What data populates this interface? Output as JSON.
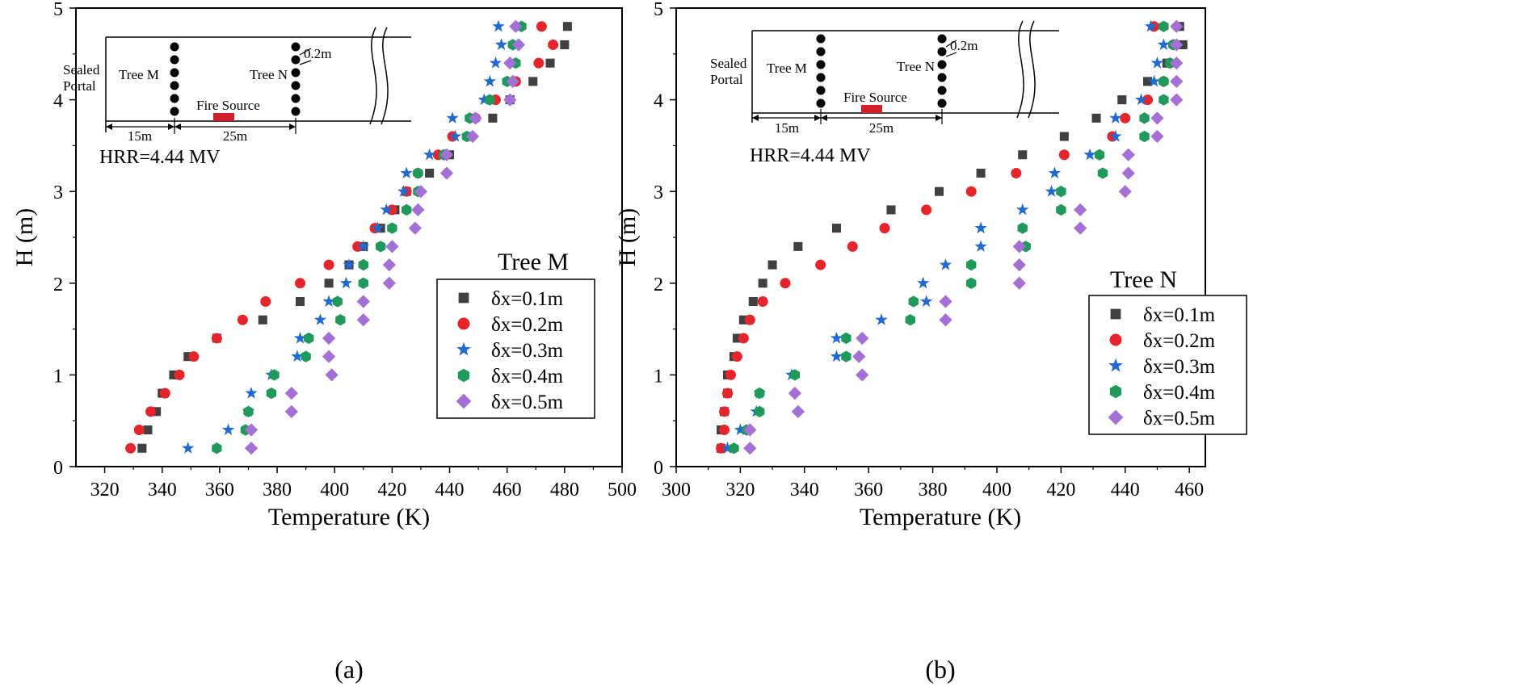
{
  "legend_entries": [
    "δx=0.1m",
    "δx=0.2m",
    "δx=0.3m",
    "δx=0.4m",
    "δx=0.5m"
  ],
  "inset": {
    "sealed_portal": [
      "Sealed",
      "Portal"
    ],
    "tree_m": "Tree  M",
    "tree_n": "Tree  N",
    "fire_source": "Fire Source",
    "spacing": "0.2m",
    "dim_left": "15m",
    "dim_right": "25m"
  },
  "colors": {
    "d01": "#404040",
    "d02": "#e8232a",
    "d03": "#1f6bd6",
    "d04": "#1e9a5a",
    "d05": "#a56fd8",
    "fire": "#d0202a"
  },
  "chart_data": [
    {
      "type": "scatter",
      "panel_label": "(a)",
      "title": "Tree M",
      "annotation": "HRR=4.44 MV",
      "xlabel": "Temperature (K)",
      "ylabel": "H (m)",
      "xlim": [
        310,
        500
      ],
      "ylim": [
        0,
        5
      ],
      "xticks": [
        320,
        340,
        360,
        380,
        400,
        420,
        440,
        460,
        480,
        500
      ],
      "yticks": [
        0,
        1,
        2,
        3,
        4,
        5
      ],
      "legend_position": "bottom-right",
      "y": [
        0.2,
        0.4,
        0.6,
        0.8,
        1.0,
        1.2,
        1.4,
        1.6,
        1.8,
        2.0,
        2.2,
        2.4,
        2.6,
        2.8,
        3.0,
        3.2,
        3.4,
        3.6,
        3.8,
        4.0,
        4.2,
        4.4,
        4.6,
        4.8
      ],
      "series": [
        {
          "name": "δx=0.1m",
          "marker": "square",
          "x": [
            333,
            335,
            338,
            340,
            344,
            349,
            359,
            375,
            388,
            398,
            405,
            410,
            416,
            421,
            425,
            433,
            440,
            447,
            455,
            461,
            469,
            475,
            480,
            481
          ]
        },
        {
          "name": "δx=0.2m",
          "marker": "circle",
          "x": [
            329,
            332,
            336,
            341,
            346,
            351,
            359,
            368,
            376,
            388,
            398,
            408,
            414,
            420,
            425,
            429,
            436,
            441,
            449,
            456,
            463,
            471,
            476,
            472
          ]
        },
        {
          "name": "δx=0.3m",
          "marker": "star",
          "x": [
            349,
            363,
            370,
            371,
            378,
            387,
            388,
            395,
            398,
            404,
            405,
            410,
            415,
            418,
            424,
            425,
            433,
            442,
            441,
            452,
            454,
            456,
            458,
            457
          ]
        },
        {
          "name": "δx=0.4m",
          "marker": "hexagon",
          "x": [
            359,
            369,
            370,
            378,
            379,
            390,
            391,
            402,
            401,
            410,
            410,
            416,
            420,
            425,
            429,
            429,
            438,
            446,
            447,
            454,
            460,
            463,
            462,
            465
          ]
        },
        {
          "name": "δx=0.5m",
          "marker": "diamond",
          "x": [
            371,
            371,
            385,
            385,
            399,
            398,
            398,
            410,
            410,
            419,
            419,
            420,
            428,
            429,
            430,
            439,
            439,
            448,
            449,
            461,
            462,
            461,
            464,
            463
          ]
        }
      ]
    },
    {
      "type": "scatter",
      "panel_label": "(b)",
      "title": "Tree N",
      "annotation": "HRR=4.44 MV",
      "xlabel": "Temperature (K)",
      "ylabel": "H (m)",
      "xlim": [
        300,
        465
      ],
      "ylim": [
        0,
        5
      ],
      "xticks": [
        300,
        320,
        340,
        360,
        380,
        400,
        420,
        440,
        460
      ],
      "yticks": [
        0,
        1,
        2,
        3,
        4,
        5
      ],
      "legend_position": "bottom-right",
      "y": [
        0.2,
        0.4,
        0.6,
        0.8,
        1.0,
        1.2,
        1.4,
        1.6,
        1.8,
        2.0,
        2.2,
        2.4,
        2.6,
        2.8,
        3.0,
        3.2,
        3.4,
        3.6,
        3.8,
        4.0,
        4.2,
        4.4,
        4.6,
        4.8
      ],
      "series": [
        {
          "name": "δx=0.1m",
          "marker": "square",
          "x": [
            314,
            314,
            315,
            316,
            316,
            318,
            319,
            321,
            324,
            327,
            330,
            338,
            350,
            367,
            382,
            395,
            408,
            421,
            431,
            439,
            447,
            453,
            458,
            457
          ]
        },
        {
          "name": "δx=0.2m",
          "marker": "circle",
          "x": [
            314,
            315,
            315,
            316,
            317,
            319,
            321,
            323,
            327,
            334,
            345,
            355,
            365,
            378,
            392,
            406,
            421,
            436,
            440,
            447,
            452,
            454,
            455,
            449
          ]
        },
        {
          "name": "δx=0.3m",
          "marker": "star",
          "x": [
            316,
            320,
            325,
            326,
            336,
            350,
            350,
            364,
            378,
            377,
            384,
            395,
            395,
            408,
            417,
            418,
            429,
            437,
            437,
            445,
            449,
            450,
            452,
            448
          ]
        },
        {
          "name": "δx=0.4m",
          "marker": "hexagon",
          "x": [
            318,
            322,
            326,
            326,
            337,
            353,
            353,
            373,
            374,
            392,
            392,
            409,
            408,
            420,
            420,
            433,
            432,
            446,
            446,
            452,
            452,
            454,
            455,
            452
          ]
        },
        {
          "name": "δx=0.5m",
          "marker": "diamond",
          "x": [
            323,
            323,
            338,
            337,
            358,
            357,
            358,
            384,
            384,
            407,
            407,
            407,
            426,
            426,
            440,
            441,
            441,
            450,
            450,
            456,
            456,
            456,
            456,
            456
          ]
        }
      ]
    }
  ]
}
